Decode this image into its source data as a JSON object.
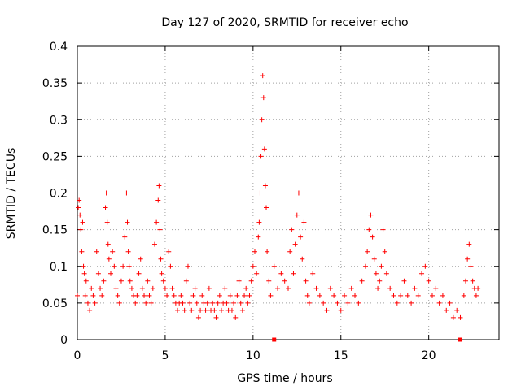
{
  "chart_data": {
    "type": "scatter",
    "title": "Day 127 of 2020, SRMTID for receiver echo",
    "xlabel": "GPS time / hours",
    "ylabel": "SRMTID / TECUs",
    "xlim": [
      0,
      24
    ],
    "ylim": [
      0,
      0.4
    ],
    "xticks": [
      0,
      5,
      10,
      15,
      20
    ],
    "xtick_labels": [
      "0",
      "5",
      "10",
      "15",
      "20"
    ],
    "yticks": [
      0,
      0.05,
      0.1,
      0.15,
      0.2,
      0.25,
      0.3,
      0.35,
      0.4
    ],
    "ytick_labels": [
      "0",
      "0.05",
      "0.1",
      "0.15",
      "0.2",
      "0.25",
      "0.3",
      "0.35",
      "0.4"
    ],
    "grid": true,
    "marker": "plus",
    "color": "#ff0000",
    "series": [
      {
        "name": "SRMTID",
        "x": [
          0.0,
          0.05,
          0.1,
          0.15,
          0.2,
          0.25,
          0.3,
          0.35,
          0.4,
          0.45,
          0.5,
          0.6,
          0.7,
          0.8,
          0.9,
          1.0,
          1.1,
          1.2,
          1.3,
          1.4,
          1.5,
          1.6,
          1.65,
          1.7,
          1.75,
          1.8,
          1.9,
          2.0,
          2.1,
          2.2,
          2.3,
          2.4,
          2.5,
          2.6,
          2.7,
          2.8,
          2.85,
          2.9,
          2.95,
          3.0,
          3.1,
          3.2,
          3.3,
          3.4,
          3.5,
          3.6,
          3.7,
          3.8,
          3.9,
          4.0,
          4.1,
          4.2,
          4.3,
          4.4,
          4.5,
          4.6,
          4.65,
          4.7,
          4.75,
          4.8,
          4.9,
          5.0,
          5.1,
          5.2,
          5.3,
          5.4,
          5.5,
          5.6,
          5.7,
          5.8,
          5.9,
          6.0,
          6.1,
          6.2,
          6.3,
          6.4,
          6.5,
          6.6,
          6.7,
          6.8,
          6.9,
          7.0,
          7.1,
          7.2,
          7.3,
          7.4,
          7.5,
          7.6,
          7.7,
          7.8,
          7.9,
          8.0,
          8.1,
          8.2,
          8.3,
          8.4,
          8.5,
          8.6,
          8.7,
          8.8,
          8.9,
          9.0,
          9.1,
          9.2,
          9.3,
          9.4,
          9.5,
          9.6,
          9.7,
          9.8,
          9.9,
          10.0,
          10.1,
          10.2,
          10.3,
          10.35,
          10.4,
          10.45,
          10.5,
          10.55,
          10.6,
          10.65,
          10.7,
          10.75,
          10.8,
          10.9,
          11.0,
          11.2,
          11.4,
          11.6,
          11.8,
          12.0,
          12.1,
          12.2,
          12.3,
          12.4,
          12.5,
          12.6,
          12.7,
          12.8,
          12.9,
          13.0,
          13.1,
          13.2,
          13.4,
          13.6,
          13.8,
          14.0,
          14.2,
          14.4,
          14.6,
          14.8,
          15.0,
          15.2,
          15.4,
          15.6,
          15.8,
          16.0,
          16.2,
          16.4,
          16.5,
          16.6,
          16.7,
          16.8,
          16.9,
          17.0,
          17.1,
          17.2,
          17.3,
          17.4,
          17.5,
          17.6,
          17.8,
          18.0,
          18.2,
          18.4,
          18.6,
          18.8,
          19.0,
          19.2,
          19.4,
          19.6,
          19.8,
          20.0,
          20.2,
          20.4,
          20.6,
          20.8,
          21.0,
          21.2,
          21.4,
          21.6,
          21.8,
          22.0,
          22.1,
          22.2,
          22.3,
          22.4,
          22.5,
          22.6,
          22.7,
          22.8
        ],
        "y": [
          0.06,
          0.18,
          0.19,
          0.17,
          0.15,
          0.12,
          0.16,
          0.1,
          0.09,
          0.06,
          0.08,
          0.05,
          0.04,
          0.07,
          0.06,
          0.05,
          0.12,
          0.09,
          0.07,
          0.06,
          0.08,
          0.18,
          0.2,
          0.16,
          0.13,
          0.11,
          0.09,
          0.12,
          0.1,
          0.07,
          0.06,
          0.05,
          0.08,
          0.1,
          0.14,
          0.2,
          0.16,
          0.12,
          0.1,
          0.08,
          0.07,
          0.06,
          0.05,
          0.06,
          0.09,
          0.11,
          0.07,
          0.06,
          0.05,
          0.08,
          0.06,
          0.05,
          0.07,
          0.13,
          0.16,
          0.19,
          0.21,
          0.15,
          0.11,
          0.09,
          0.08,
          0.07,
          0.06,
          0.12,
          0.1,
          0.07,
          0.06,
          0.05,
          0.04,
          0.05,
          0.06,
          0.05,
          0.04,
          0.08,
          0.1,
          0.05,
          0.04,
          0.06,
          0.07,
          0.05,
          0.03,
          0.04,
          0.06,
          0.05,
          0.04,
          0.05,
          0.07,
          0.04,
          0.05,
          0.04,
          0.03,
          0.05,
          0.06,
          0.04,
          0.05,
          0.07,
          0.05,
          0.04,
          0.06,
          0.04,
          0.05,
          0.03,
          0.06,
          0.08,
          0.05,
          0.04,
          0.06,
          0.07,
          0.05,
          0.06,
          0.08,
          0.1,
          0.12,
          0.09,
          0.14,
          0.16,
          0.2,
          0.25,
          0.3,
          0.36,
          0.33,
          0.26,
          0.21,
          0.18,
          0.12,
          0.08,
          0.06,
          0.1,
          0.07,
          0.09,
          0.08,
          0.07,
          0.12,
          0.15,
          0.09,
          0.13,
          0.17,
          0.2,
          0.14,
          0.11,
          0.16,
          0.08,
          0.06,
          0.05,
          0.09,
          0.07,
          0.06,
          0.05,
          0.04,
          0.07,
          0.06,
          0.05,
          0.04,
          0.06,
          0.05,
          0.07,
          0.06,
          0.05,
          0.08,
          0.1,
          0.12,
          0.15,
          0.17,
          0.14,
          0.11,
          0.09,
          0.07,
          0.08,
          0.1,
          0.15,
          0.12,
          0.09,
          0.07,
          0.06,
          0.05,
          0.06,
          0.08,
          0.06,
          0.05,
          0.07,
          0.06,
          0.09,
          0.1,
          0.08,
          0.06,
          0.07,
          0.05,
          0.06,
          0.04,
          0.05,
          0.03,
          0.04,
          0.03,
          0.06,
          0.08,
          0.11,
          0.13,
          0.1,
          0.08,
          0.07,
          0.06,
          0.07
        ]
      }
    ],
    "gap_markers_x": [
      11.2,
      21.8
    ]
  }
}
